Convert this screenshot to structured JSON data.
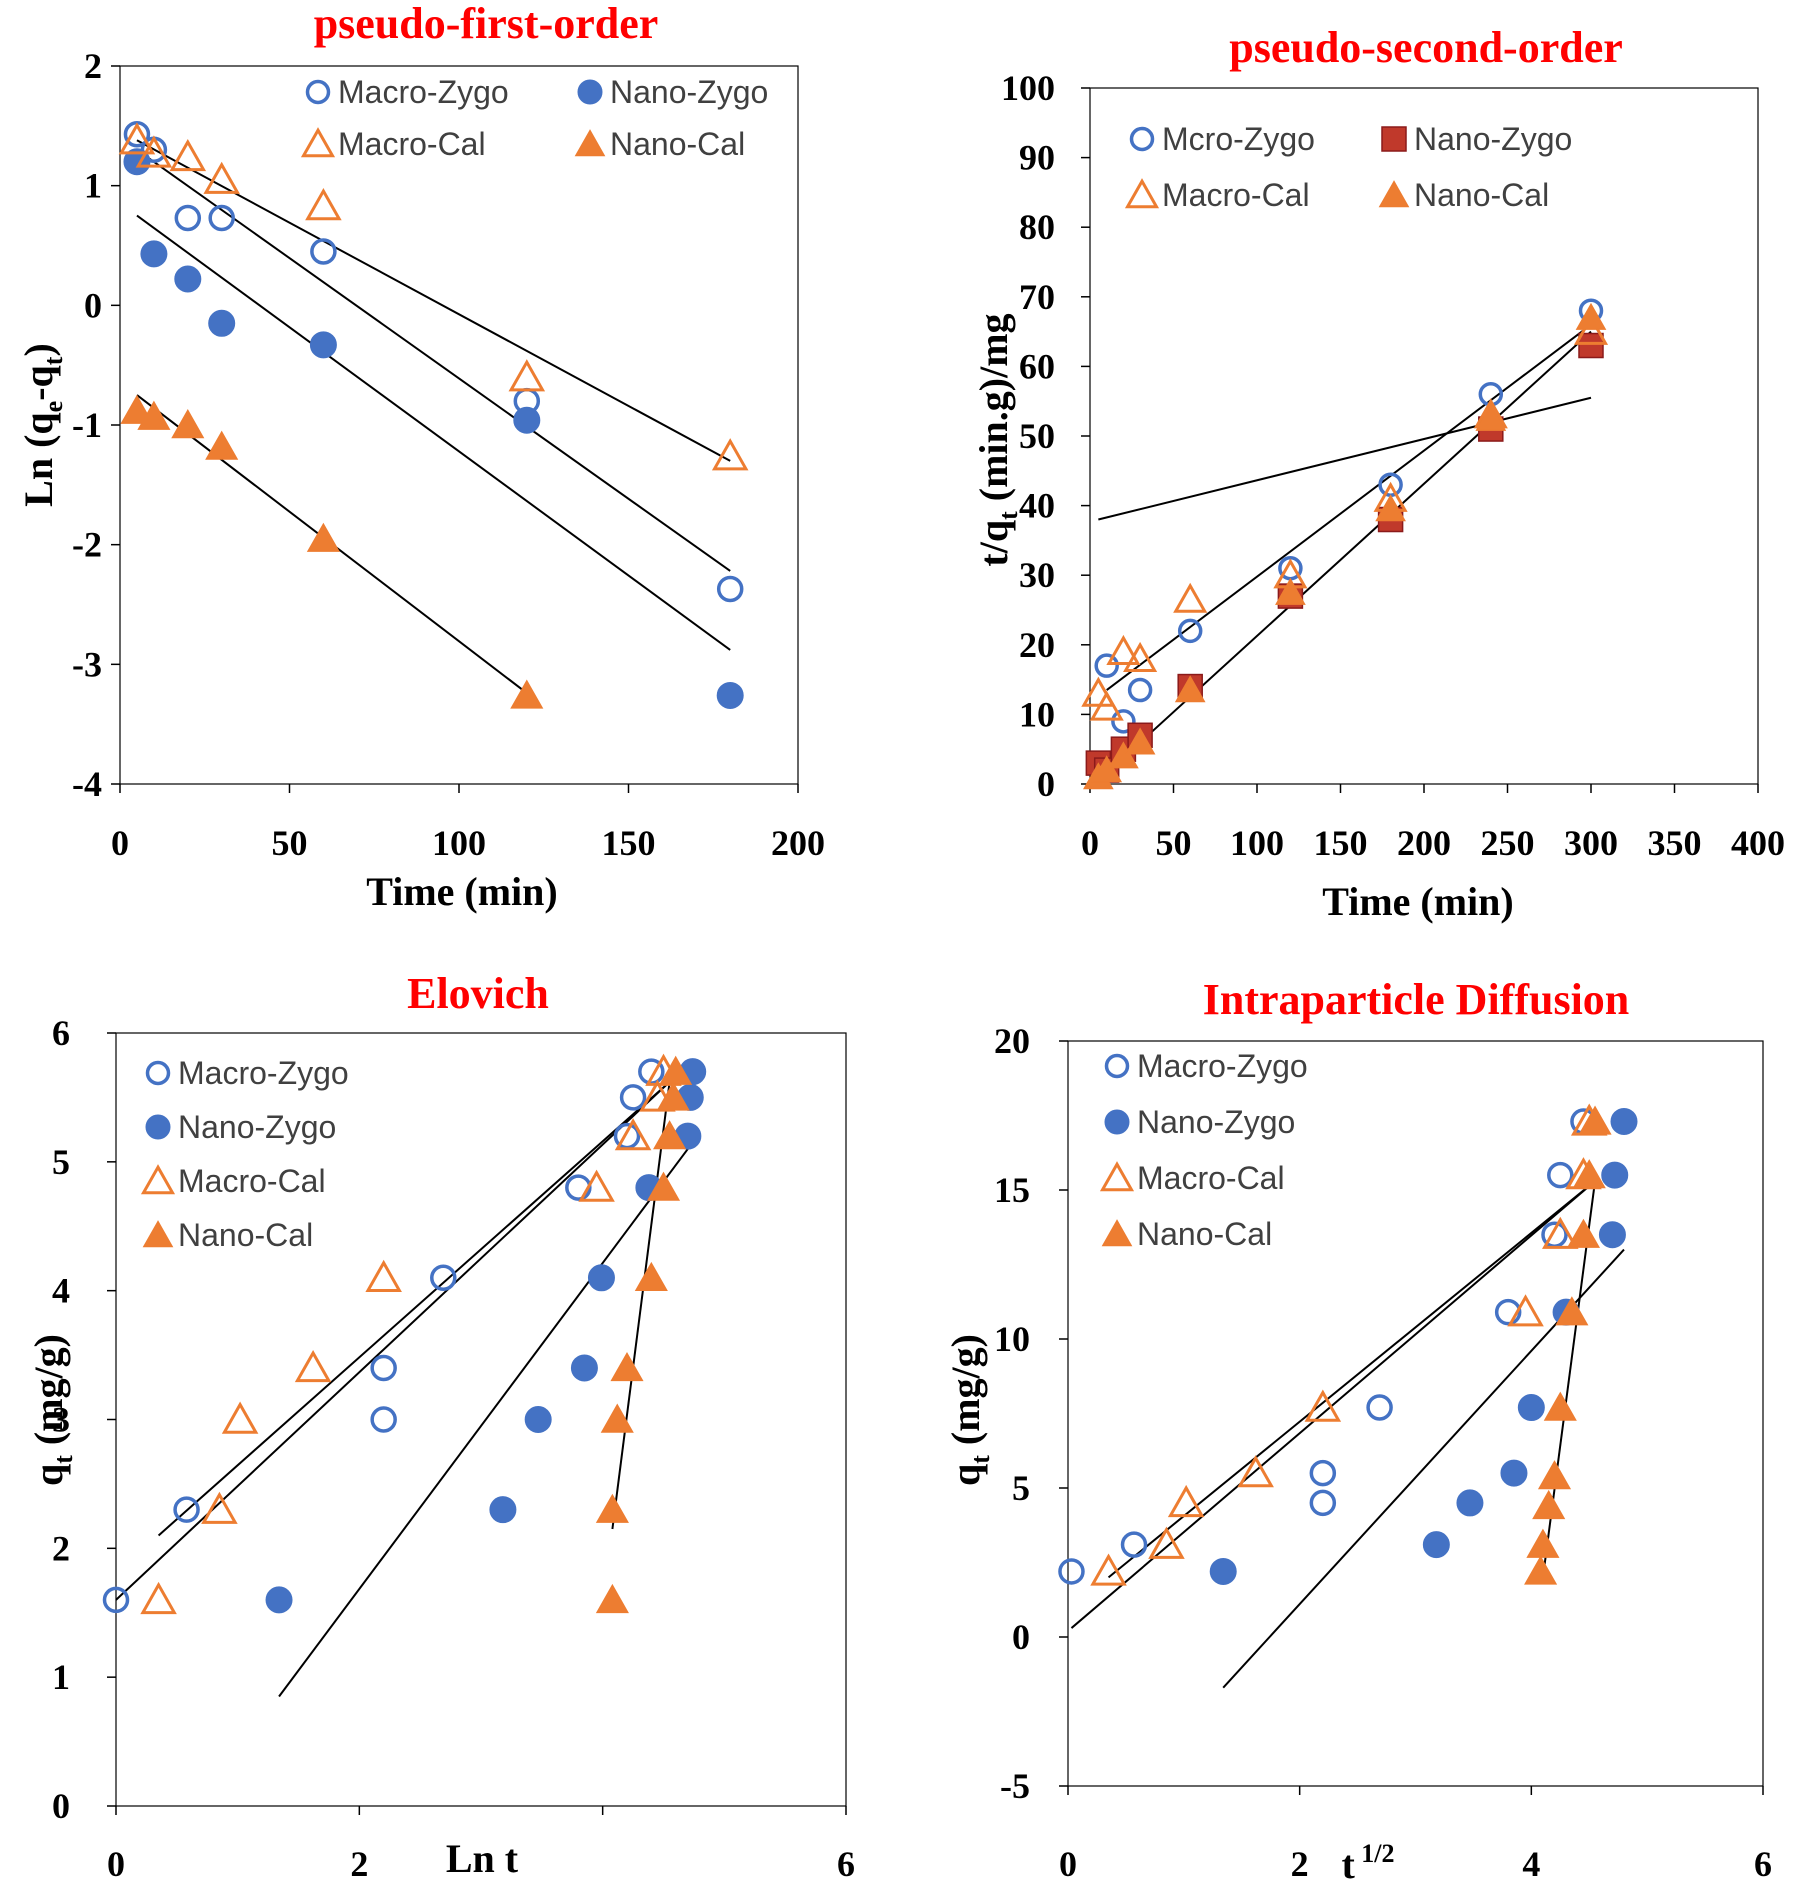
{
  "chart_data": [
    {
      "id": "pfo",
      "type": "scatter",
      "title": "pseudo-first-order",
      "xlabel": "Time (min)",
      "ylabel": "Ln (q",
      "ylabel_sub1": "e",
      "ylabel_mid": "-q",
      "ylabel_sub2": "t",
      "ylabel_end": ")",
      "xlim": [
        0,
        200
      ],
      "ylim": [
        -4,
        2
      ],
      "xticks": [
        0,
        50,
        100,
        150,
        200
      ],
      "yticks": [
        -4,
        -3,
        -2,
        -1,
        0,
        1,
        2
      ],
      "legend": [
        "Macro-Zygo",
        "Nano-Zygo",
        "Macro-Cal",
        "Nano-Cal"
      ],
      "series": [
        {
          "name": "Macro-Zygo",
          "marker": "circle-open",
          "color": "#4472c4",
          "x": [
            5,
            10,
            20,
            30,
            60,
            120,
            180
          ],
          "y": [
            1.43,
            1.3,
            0.73,
            0.73,
            0.45,
            -0.8,
            -2.37
          ]
        },
        {
          "name": "Nano-Zygo",
          "marker": "circle-filled",
          "color": "#4472c4",
          "x": [
            5,
            10,
            20,
            30,
            60,
            120,
            180
          ],
          "y": [
            1.2,
            0.43,
            0.22,
            -0.15,
            -0.33,
            -0.96,
            -3.26
          ]
        },
        {
          "name": "Macro-Cal",
          "marker": "triangle-open",
          "color": "#ed7d31",
          "x": [
            5,
            10,
            20,
            30,
            60,
            120,
            180
          ],
          "y": [
            1.38,
            1.27,
            1.24,
            1.05,
            0.83,
            -0.6,
            -1.26
          ]
        },
        {
          "name": "Nano-Cal",
          "marker": "triangle-filled",
          "color": "#ed7d31",
          "x": [
            5,
            10,
            20,
            30,
            60,
            120
          ],
          "y": [
            -0.88,
            -0.93,
            -1.0,
            -1.18,
            -1.95,
            -3.26
          ]
        }
      ],
      "trendlines": [
        {
          "x": [
            5,
            180
          ],
          "y": [
            1.38,
            -1.3
          ]
        },
        {
          "x": [
            5,
            180
          ],
          "y": [
            1.3,
            -2.22
          ]
        },
        {
          "x": [
            5,
            180
          ],
          "y": [
            0.75,
            -2.88
          ]
        },
        {
          "x": [
            5,
            120
          ],
          "y": [
            -0.75,
            -3.24
          ]
        }
      ]
    },
    {
      "id": "pso",
      "type": "scatter",
      "title": "pseudo-second-order",
      "xlabel": "Time (min)",
      "ylabel": "t/q",
      "ylabel_sub1": "t",
      "ylabel_mid": " (min.g)/mg",
      "xlim": [
        0,
        400
      ],
      "ylim": [
        0,
        100
      ],
      "xticks": [
        0,
        50,
        100,
        150,
        200,
        250,
        300,
        350,
        400
      ],
      "yticks": [
        0,
        10,
        20,
        30,
        40,
        50,
        60,
        70,
        80,
        90,
        100
      ],
      "legend": [
        "Mcro-Zygo",
        "Nano-Zygo",
        "Macro-Cal",
        "Nano-Cal"
      ],
      "series": [
        {
          "name": "Mcro-Zygo",
          "marker": "circle-open",
          "color": "#4472c4",
          "x": [
            10,
            20,
            30,
            60,
            120,
            180,
            240,
            300
          ],
          "y": [
            17,
            9,
            13.5,
            22,
            31,
            43,
            56,
            68
          ]
        },
        {
          "name": "Nano-Zygo",
          "marker": "square-filled",
          "color": "#c0392b",
          "x": [
            5,
            10,
            20,
            30,
            60,
            120,
            180,
            240,
            300
          ],
          "y": [
            3,
            2,
            5,
            7,
            14,
            27,
            38,
            51,
            63
          ]
        },
        {
          "name": "Macro-Cal",
          "marker": "triangle-open",
          "color": "#ed7d31",
          "x": [
            5,
            10,
            20,
            30,
            60,
            120,
            180,
            240,
            300
          ],
          "y": [
            13,
            11,
            19,
            18,
            26.5,
            30,
            41,
            53,
            65
          ]
        },
        {
          "name": "Nano-Cal",
          "marker": "triangle-filled",
          "color": "#ed7d31",
          "x": [
            5,
            10,
            20,
            30,
            60,
            120,
            180,
            240,
            300
          ],
          "y": [
            1,
            2,
            4,
            6,
            13.5,
            27.5,
            39.5,
            52.5,
            67
          ]
        }
      ],
      "trendlines": [
        {
          "x": [
            5,
            300
          ],
          "y": [
            38,
            55.5
          ]
        },
        {
          "x": [
            10,
            300
          ],
          "y": [
            13.5,
            66
          ]
        },
        {
          "x": [
            5,
            300
          ],
          "y": [
            0.5,
            65
          ]
        }
      ]
    },
    {
      "id": "elovich",
      "type": "scatter",
      "title": "Elovich",
      "xlabel": "Ln t",
      "ylabel": "q",
      "ylabel_sub1": "t",
      "ylabel_mid": " (mg/g)",
      "xlim": [
        0,
        6
      ],
      "ylim": [
        0,
        6
      ],
      "xticks": [
        0,
        2,
        4,
        6
      ],
      "xtick_labels": [
        "0",
        "2",
        "",
        "6"
      ],
      "yticks": [
        0,
        1,
        2,
        3,
        4,
        5,
        6
      ],
      "legend": [
        "Macro-Zygo",
        "Nano-Zygo",
        "Macro-Cal",
        "Nano-Cal"
      ],
      "series": [
        {
          "name": "Macro-Zygo",
          "marker": "circle-open",
          "color": "#4472c4",
          "x": [
            0,
            0.58,
            2.2,
            2.2,
            2.69,
            3.8,
            4.2,
            4.25,
            4.4
          ],
          "y": [
            1.6,
            2.3,
            3.0,
            3.4,
            4.1,
            4.8,
            5.2,
            5.5,
            5.7
          ]
        },
        {
          "name": "Nano-Zygo",
          "marker": "circle-filled",
          "color": "#4472c4",
          "x": [
            1.34,
            3.18,
            3.47,
            3.85,
            3.99,
            4.38,
            4.7,
            4.72,
            4.74
          ],
          "y": [
            1.6,
            2.3,
            3.0,
            3.4,
            4.1,
            4.8,
            5.2,
            5.5,
            5.7
          ]
        },
        {
          "name": "Macro-Cal",
          "marker": "triangle-open",
          "color": "#ed7d31",
          "x": [
            0.35,
            0.85,
            1.02,
            1.62,
            2.2,
            3.95,
            4.25,
            4.45,
            4.5
          ],
          "y": [
            1.6,
            2.3,
            3.0,
            3.4,
            4.1,
            4.8,
            5.2,
            5.5,
            5.7
          ]
        },
        {
          "name": "Nano-Cal",
          "marker": "triangle-filled",
          "color": "#ed7d31",
          "x": [
            4.08,
            4.08,
            4.12,
            4.2,
            4.4,
            4.5,
            4.55,
            4.58,
            4.6
          ],
          "y": [
            1.6,
            2.3,
            3.0,
            3.4,
            4.1,
            4.8,
            5.2,
            5.5,
            5.7
          ]
        }
      ],
      "trendlines": [
        {
          "x": [
            0,
            4.55
          ],
          "y": [
            1.6,
            5.62
          ]
        },
        {
          "x": [
            0.35,
            4.55
          ],
          "y": [
            2.1,
            5.62
          ]
        },
        {
          "x": [
            1.34,
            4.7
          ],
          "y": [
            0.85,
            5.1
          ]
        },
        {
          "x": [
            4.08,
            4.55
          ],
          "y": [
            2.15,
            5.62
          ]
        }
      ]
    },
    {
      "id": "ipd",
      "type": "scatter",
      "title": "Intraparticle  Diffusion",
      "xlabel": "t",
      "xlabel_sup": "1/2",
      "ylabel": "q",
      "ylabel_sub1": "t",
      "ylabel_mid": " (mg/g)",
      "xlim": [
        0,
        6
      ],
      "ylim": [
        -5,
        20
      ],
      "xticks": [
        0,
        2,
        4,
        6
      ],
      "yticks": [
        -5,
        0,
        5,
        10,
        15,
        20
      ],
      "legend": [
        "Macro-Zygo",
        "Nano-Zygo",
        "Macro-Cal",
        "Nano-Cal"
      ],
      "series": [
        {
          "name": "Macro-Zygo",
          "marker": "circle-open",
          "color": "#4472c4",
          "x": [
            0.03,
            0.57,
            2.2,
            2.2,
            2.69,
            3.8,
            4.2,
            4.25,
            4.45
          ],
          "y": [
            2.2,
            3.1,
            4.5,
            5.5,
            7.7,
            10.9,
            13.5,
            15.5,
            17.3
          ]
        },
        {
          "name": "Nano-Zygo",
          "marker": "circle-filled",
          "color": "#4472c4",
          "x": [
            1.34,
            3.18,
            3.47,
            3.85,
            4.0,
            4.3,
            4.7,
            4.72,
            4.8
          ],
          "y": [
            2.2,
            3.1,
            4.5,
            5.5,
            7.7,
            10.9,
            13.5,
            15.5,
            17.3
          ]
        },
        {
          "name": "Macro-Cal",
          "marker": "triangle-open",
          "color": "#ed7d31",
          "x": [
            0.35,
            0.85,
            1.02,
            1.62,
            2.2,
            3.95,
            4.25,
            4.45,
            4.5
          ],
          "y": [
            2.2,
            3.1,
            4.5,
            5.5,
            7.7,
            10.9,
            13.5,
            15.5,
            17.3
          ]
        },
        {
          "name": "Nano-Cal",
          "marker": "triangle-filled",
          "color": "#ed7d31",
          "x": [
            4.08,
            4.1,
            4.15,
            4.2,
            4.25,
            4.35,
            4.45,
            4.5,
            4.55
          ],
          "y": [
            2.2,
            3.1,
            4.4,
            5.4,
            7.7,
            10.9,
            13.5,
            15.5,
            17.3
          ]
        }
      ],
      "trendlines": [
        {
          "x": [
            0.03,
            4.55
          ],
          "y": [
            0.3,
            15.3
          ]
        },
        {
          "x": [
            0.35,
            4.55
          ],
          "y": [
            2.0,
            15.3
          ]
        },
        {
          "x": [
            1.34,
            4.8
          ],
          "y": [
            -1.7,
            13.0
          ]
        },
        {
          "x": [
            4.1,
            4.55
          ],
          "y": [
            2.0,
            15.3
          ]
        }
      ]
    }
  ]
}
